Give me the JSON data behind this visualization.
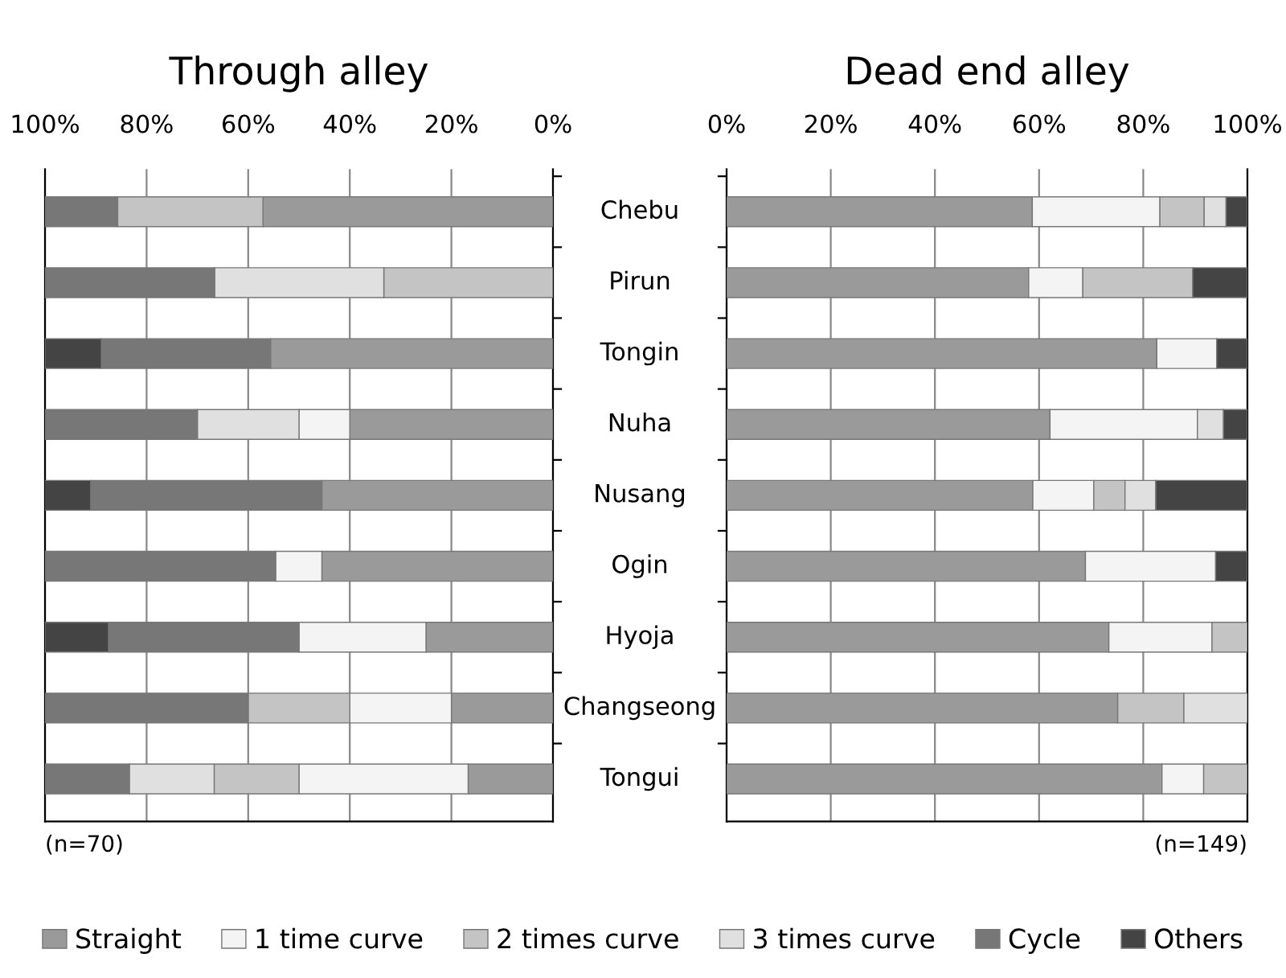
{
  "chart_data": [
    {
      "type": "bar",
      "title": "Through alley",
      "orientation": "horizontal",
      "stacked": true,
      "grid": "x",
      "legend": "bottom",
      "tick_labels": "x",
      "categories": [
        null,
        null,
        null,
        null,
        null,
        null,
        null,
        null,
        null
      ],
      "xlim": [
        100,
        0
      ],
      "xticks": [
        {
          "value": 100,
          "label": "100%"
        },
        {
          "value": 80,
          "label": "80%"
        },
        {
          "value": 60,
          "label": "60%"
        },
        {
          "value": 40,
          "label": "40%"
        },
        {
          "value": 20,
          "label": "20%"
        },
        {
          "value": 0,
          "label": "0%"
        }
      ],
      "series": [
        {
          "name": "Straight",
          "color": "#9a9a9a",
          "values": [
            57.1,
            null,
            55.6,
            40,
            45.5,
            45.5,
            25,
            20,
            16.7
          ]
        },
        {
          "name": "1 time curve",
          "color": "#f4f4f4",
          "values": [
            null,
            null,
            null,
            10,
            null,
            9.1,
            25,
            20,
            33.3
          ]
        },
        {
          "name": "2 times curve",
          "color": "#c4c4c4",
          "values": [
            28.6,
            33.3,
            null,
            null,
            null,
            null,
            null,
            20,
            16.7
          ]
        },
        {
          "name": "3 times curve",
          "color": "#e0e0e0",
          "values": [
            null,
            33.3,
            null,
            20,
            null,
            null,
            null,
            null,
            16.7
          ]
        },
        {
          "name": "Cycle",
          "color": "#777777",
          "values": [
            14.3,
            33.3,
            33.3,
            30,
            45.5,
            45.5,
            37.5,
            40,
            16.7
          ]
        },
        {
          "name": "Others",
          "color": "#444444",
          "values": [
            null,
            null,
            11.1,
            null,
            9.1,
            null,
            12.5,
            null,
            null
          ]
        }
      ],
      "annotations": [
        "(n=70)"
      ]
    },
    {
      "type": "bar",
      "title": "Dead end alley",
      "orientation": "horizontal",
      "stacked": true,
      "grid": "x",
      "categories": [
        "Chebu",
        "Pirun",
        "Tongin",
        "Nuha",
        "Nusang",
        "Ogin",
        "Hyoja",
        "Changseong",
        "Tongui"
      ],
      "xlim": [
        0,
        100
      ],
      "xticks": [
        {
          "value": 0,
          "label": "0%"
        },
        {
          "value": 20,
          "label": "20%"
        },
        {
          "value": 40,
          "label": "40%"
        },
        {
          "value": 60,
          "label": "60%"
        },
        {
          "value": 80,
          "label": "80%"
        },
        {
          "value": 100,
          "label": "100%"
        }
      ],
      "series": [
        {
          "color": "#9a9a9a",
          "values": [
            58.7,
            58.0,
            82.6,
            62.1,
            58.8,
            68.9,
            73.4,
            75.1,
            83.6
          ]
        },
        {
          "color": "#f4f4f4",
          "values": [
            24.5,
            10.4,
            11.5,
            28.3,
            11.7,
            25.0,
            19.8,
            null,
            8.0
          ]
        },
        {
          "color": "#c4c4c4",
          "values": [
            8.5,
            21.1,
            null,
            null,
            6.0,
            null,
            6.8,
            12.7,
            8.4
          ]
        },
        {
          "color": "#e0e0e0",
          "values": [
            4.2,
            null,
            null,
            5.0,
            5.9,
            null,
            null,
            12.2,
            null
          ]
        },
        {
          "color": "#444444",
          "values": [
            4.1,
            10.5,
            5.9,
            4.6,
            17.6,
            6.1,
            null,
            null,
            null
          ]
        }
      ],
      "annotations": [
        "(n=149)"
      ]
    }
  ]
}
